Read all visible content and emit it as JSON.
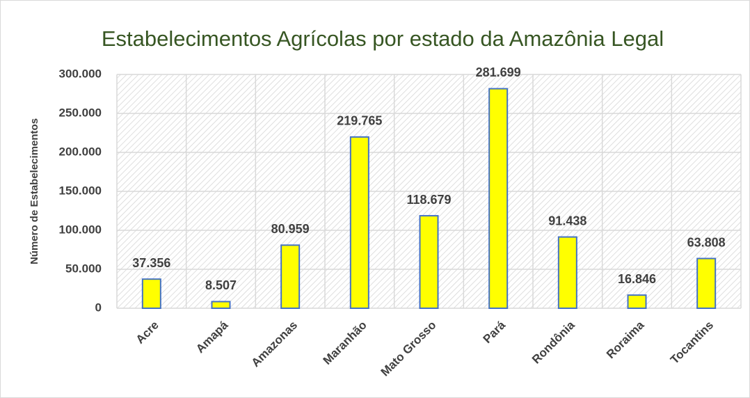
{
  "chart_data": {
    "type": "bar",
    "title": "Estabelecimentos Agrícolas por estado da Amazônia Legal",
    "y_label": "Número de Estabelecimentos",
    "categories": [
      "Acre",
      "Amapá",
      "Amazonas",
      "Maranhão",
      "Mato Grosso",
      "Pará",
      "Rondônia",
      "Roraima",
      "Tocantins"
    ],
    "values": [
      37356,
      8507,
      80959,
      219765,
      118679,
      281699,
      91438,
      16846,
      63808
    ],
    "value_labels": [
      "37.356",
      "8.507",
      "80.959",
      "219.765",
      "118.679",
      "281.699",
      "91.438",
      "16.846",
      "63.808"
    ],
    "color": "#ffff00",
    "edge_color": "#4472c4",
    "ylim": [
      0,
      300000
    ],
    "yticks": [
      0,
      {
        "value": 50000,
        "label": "50.000"
      },
      {
        "value": 100000,
        "label": "100.000"
      },
      {
        "value": 150000,
        "label": "150.000"
      },
      {
        "value": 200000,
        "label": "200.000"
      },
      {
        "value": 250000,
        "label": "250.000"
      },
      {
        "value": 300000,
        "label": "300.000"
      }
    ],
    "grid": true
  }
}
